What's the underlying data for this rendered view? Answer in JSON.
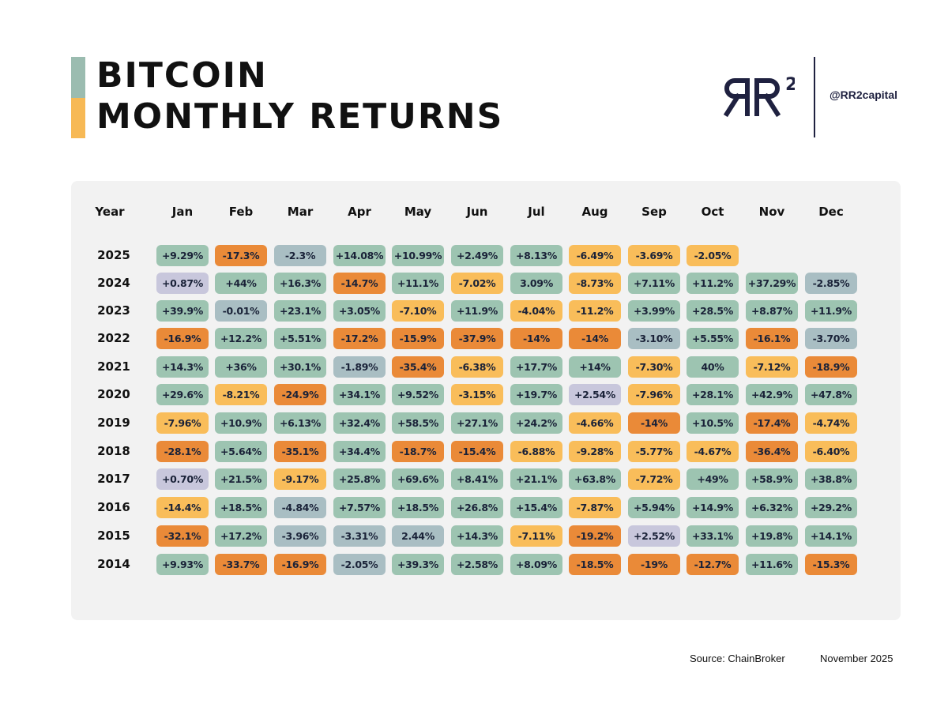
{
  "header": {
    "title_line1": "BITCOIN",
    "title_line2": "MONTHLY RETURNS",
    "handle": "@RR2capital",
    "logo_text": "RR",
    "logo_sup": "2"
  },
  "footer": {
    "source": "Source: ChainBroker",
    "date": "November 2025"
  },
  "colors": {
    "accent_top": "#9bbcb0",
    "accent_bottom": "#f7b955",
    "logo": "#1f2140",
    "green": "#9dc4b1",
    "blue_grey": "#a9bec3",
    "lavender": "#c8c7dc",
    "light_orange": "#f9bd5a",
    "dark_orange": "#ea8a38"
  },
  "chart_data": {
    "type": "table",
    "title": "BITCOIN MONTHLY RETURNS",
    "row_header": "Year",
    "columns": [
      "Jan",
      "Feb",
      "Mar",
      "Apr",
      "May",
      "Jun",
      "Jul",
      "Aug",
      "Sep",
      "Oct",
      "Nov",
      "Dec"
    ],
    "rows": [
      {
        "year": "2025",
        "labels": [
          "+9.29%",
          "-17.3%",
          "-2.3%",
          "+14.08%",
          "+10.99%",
          "+2.49%",
          "+8.13%",
          "-6.49%",
          "-3.69%",
          "-2.05%",
          "",
          ""
        ],
        "colors": [
          "green",
          "dark_orange",
          "blue_grey",
          "green",
          "green",
          "green",
          "green",
          "light_orange",
          "light_orange",
          "light_orange",
          "",
          ""
        ]
      },
      {
        "year": "2024",
        "labels": [
          "+0.87%",
          "+44%",
          "+16.3%",
          "-14.7%",
          "+11.1%",
          "-7.02%",
          "3.09%",
          "-8.73%",
          "+7.11%",
          "+11.2%",
          "+37.29%",
          "-2.85%"
        ],
        "colors": [
          "lavender",
          "green",
          "green",
          "dark_orange",
          "green",
          "light_orange",
          "green",
          "light_orange",
          "green",
          "green",
          "green",
          "blue_grey"
        ]
      },
      {
        "year": "2023",
        "labels": [
          "+39.9%",
          "-0.01%",
          "+23.1%",
          "+3.05%",
          "-7.10%",
          "+11.9%",
          "-4.04%",
          "-11.2%",
          "+3.99%",
          "+28.5%",
          "+8.87%",
          "+11.9%"
        ],
        "colors": [
          "green",
          "blue_grey",
          "green",
          "green",
          "light_orange",
          "green",
          "light_orange",
          "light_orange",
          "green",
          "green",
          "green",
          "green"
        ]
      },
      {
        "year": "2022",
        "labels": [
          "-16.9%",
          "+12.2%",
          "+5.51%",
          "-17.2%",
          "-15.9%",
          "-37.9%",
          "-14%",
          "-14%",
          "-3.10%",
          "+5.55%",
          "-16.1%",
          "-3.70%"
        ],
        "colors": [
          "dark_orange",
          "green",
          "green",
          "dark_orange",
          "dark_orange",
          "dark_orange",
          "dark_orange",
          "dark_orange",
          "blue_grey",
          "green",
          "dark_orange",
          "blue_grey"
        ]
      },
      {
        "year": "2021",
        "labels": [
          "+14.3%",
          "+36%",
          "+30.1%",
          "-1.89%",
          "-35.4%",
          "-6.38%",
          "+17.7%",
          "+14%",
          "-7.30%",
          "40%",
          "-7.12%",
          "-18.9%"
        ],
        "colors": [
          "green",
          "green",
          "green",
          "blue_grey",
          "dark_orange",
          "light_orange",
          "green",
          "green",
          "light_orange",
          "green",
          "light_orange",
          "dark_orange"
        ]
      },
      {
        "year": "2020",
        "labels": [
          "+29.6%",
          "-8.21%",
          "-24.9%",
          "+34.1%",
          "+9.52%",
          "-3.15%",
          "+19.7%",
          "+2.54%",
          "-7.96%",
          "+28.1%",
          "+42.9%",
          "+47.8%"
        ],
        "colors": [
          "green",
          "light_orange",
          "dark_orange",
          "green",
          "green",
          "light_orange",
          "green",
          "lavender",
          "light_orange",
          "green",
          "green",
          "green"
        ]
      },
      {
        "year": "2019",
        "labels": [
          "-7.96%",
          "+10.9%",
          "+6.13%",
          "+32.4%",
          "+58.5%",
          "+27.1%",
          "+24.2%",
          "-4.66%",
          "-14%",
          "+10.5%",
          "-17.4%",
          "-4.74%"
        ],
        "colors": [
          "light_orange",
          "green",
          "green",
          "green",
          "green",
          "green",
          "green",
          "light_orange",
          "dark_orange",
          "green",
          "dark_orange",
          "light_orange"
        ]
      },
      {
        "year": "2018",
        "labels": [
          "-28.1%",
          "+5.64%",
          "-35.1%",
          "+34.4%",
          "-18.7%",
          "-15.4%",
          "-6.88%",
          "-9.28%",
          "-5.77%",
          "-4.67%",
          "-36.4%",
          "-6.40%"
        ],
        "colors": [
          "dark_orange",
          "green",
          "dark_orange",
          "green",
          "dark_orange",
          "dark_orange",
          "light_orange",
          "light_orange",
          "light_orange",
          "light_orange",
          "dark_orange",
          "light_orange"
        ]
      },
      {
        "year": "2017",
        "labels": [
          "+0.70%",
          "+21.5%",
          "-9.17%",
          "+25.8%",
          "+69.6%",
          "+8.41%",
          "+21.1%",
          "+63.8%",
          "-7.72%",
          "+49%",
          "+58.9%",
          "+38.8%"
        ],
        "colors": [
          "lavender",
          "green",
          "light_orange",
          "green",
          "green",
          "green",
          "green",
          "green",
          "light_orange",
          "green",
          "green",
          "green"
        ]
      },
      {
        "year": "2016",
        "labels": [
          "-14.4%",
          "+18.5%",
          "-4.84%",
          "+7.57%",
          "+18.5%",
          "+26.8%",
          "+15.4%",
          "-7.87%",
          "+5.94%",
          "+14.9%",
          "+6.32%",
          "+29.2%"
        ],
        "colors": [
          "light_orange",
          "green",
          "blue_grey",
          "green",
          "green",
          "green",
          "green",
          "light_orange",
          "green",
          "green",
          "green",
          "green"
        ]
      },
      {
        "year": "2015",
        "labels": [
          "-32.1%",
          "+17.2%",
          "-3.96%",
          "-3.31%",
          "2.44%",
          "+14.3%",
          "-7.11%",
          "-19.2%",
          "+2.52%",
          "+33.1%",
          "+19.8%",
          "+14.1%"
        ],
        "colors": [
          "dark_orange",
          "green",
          "blue_grey",
          "blue_grey",
          "blue_grey",
          "green",
          "light_orange",
          "dark_orange",
          "lavender",
          "green",
          "green",
          "green"
        ]
      },
      {
        "year": "2014",
        "labels": [
          "+9.93%",
          "-33.7%",
          "-16.9%",
          "-2.05%",
          "+39.3%",
          "+2.58%",
          "+8.09%",
          "-18.5%",
          "-19%",
          "-12.7%",
          "+11.6%",
          "-15.3%"
        ],
        "colors": [
          "green",
          "dark_orange",
          "dark_orange",
          "blue_grey",
          "green",
          "green",
          "green",
          "dark_orange",
          "dark_orange",
          "dark_orange",
          "green",
          "dark_orange"
        ]
      }
    ]
  }
}
